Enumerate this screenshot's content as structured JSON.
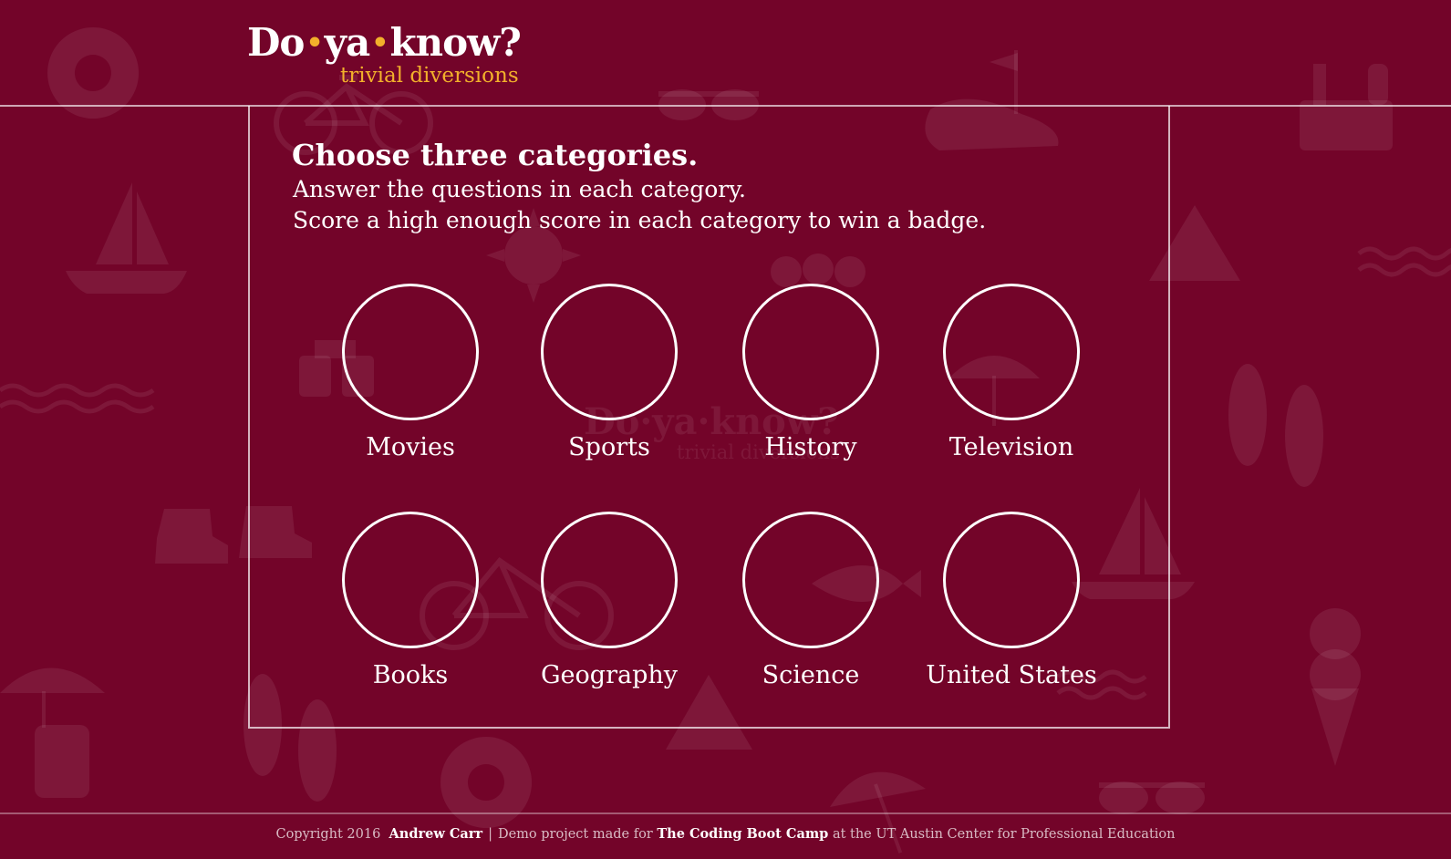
{
  "colors": {
    "background": "#730429",
    "accent": "#f2b02b",
    "text": "#ffffff"
  },
  "logo": {
    "word1": "Do",
    "word2": "ya",
    "word3": "know?",
    "dot": "•",
    "tagline": "trivial diversions"
  },
  "intro": {
    "heading": "Choose three categories.",
    "line1": "Answer the questions in each category.",
    "line2": "Score a high enough score in each category to win a badge."
  },
  "categories": [
    {
      "label": "Movies"
    },
    {
      "label": "Sports"
    },
    {
      "label": "History"
    },
    {
      "label": "Television"
    },
    {
      "label": "Books"
    },
    {
      "label": "Geography"
    },
    {
      "label": "Science"
    },
    {
      "label": "United States"
    }
  ],
  "footer": {
    "copyright": "Copyright 2016",
    "author": "Andrew Carr",
    "separator": "|",
    "made_for": "Demo project made for",
    "bootcamp": "The Coding Boot Camp",
    "location": "at the UT Austin Center for Professional Education"
  },
  "background_icons": [
    "life-ring-icon",
    "bicycle-icon",
    "sunglasses-icon",
    "golf-flag-icon",
    "picnic-basket-icon",
    "sailboat-icon",
    "sun-icon",
    "cherries-icon",
    "tent-icon",
    "waves-icon",
    "binoculars-icon",
    "beach-umbrella-icon",
    "flip-flops-icon",
    "hiking-boot-icon",
    "fish-icon",
    "ice-cream-icon",
    "beach-chair-icon",
    "cocktail-umbrella-icon"
  ]
}
